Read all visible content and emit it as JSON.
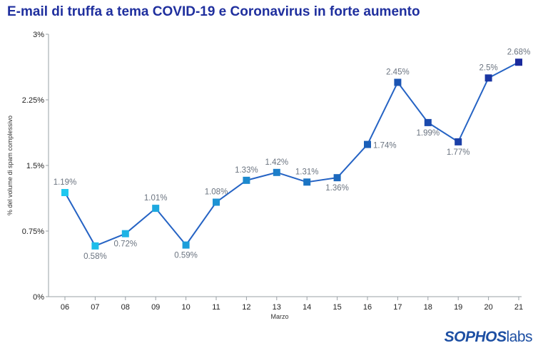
{
  "chart_data": {
    "type": "line",
    "title": "E-mail di truffa a tema COVID-19 e Coronavirus in forte aumento",
    "xlabel": "Marzo",
    "ylabel": "% del volume di spam complessivo",
    "x": [
      "06",
      "07",
      "08",
      "09",
      "10",
      "11",
      "12",
      "13",
      "14",
      "15",
      "16",
      "17",
      "18",
      "19",
      "20",
      "21"
    ],
    "values": [
      1.19,
      0.58,
      0.72,
      1.01,
      0.59,
      1.08,
      1.33,
      1.42,
      1.31,
      1.36,
      1.74,
      2.45,
      1.99,
      1.77,
      2.5,
      2.68
    ],
    "data_labels": [
      "1.19%",
      "0.58%",
      "0.72%",
      "1.01%",
      "0.59%",
      "1.08%",
      "1.33%",
      "1.42%",
      "1.31%",
      "1.36%",
      "1.74%",
      "2.45%",
      "1.99%",
      "1.77%",
      "2.5%",
      "2.68%"
    ],
    "ylim": [
      0,
      3
    ],
    "yticks": [
      0,
      0.75,
      1.5,
      2.25,
      3
    ],
    "ytick_labels": [
      "0%",
      "0.75%",
      "1.5%",
      "2.25%",
      "3%"
    ],
    "grid": false,
    "line_color": "#2563c4",
    "marker_color_start": "#1ec8f0",
    "marker_color_end": "#1a2a9c"
  },
  "brand": {
    "part1": "SOPHOS",
    "part2": "labs"
  }
}
